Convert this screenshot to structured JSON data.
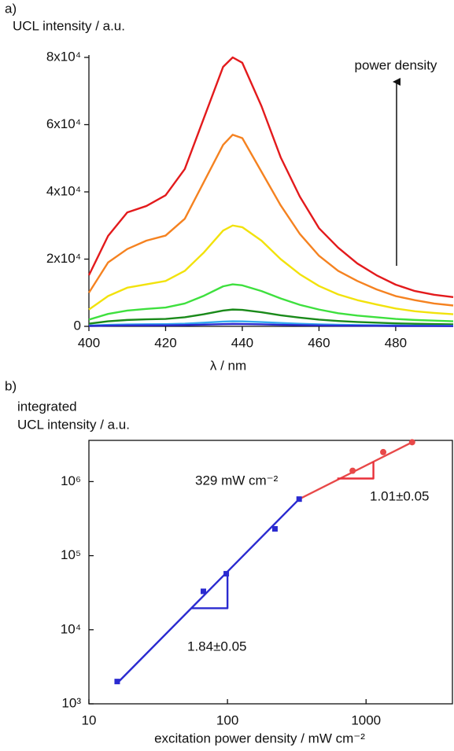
{
  "chart_data": [
    {
      "type": "line",
      "panel": "a)",
      "ylabel": "UCL intensity / a.u.",
      "xlabel": "λ / nm",
      "xlim": [
        400,
        495
      ],
      "xticks": [
        400,
        420,
        440,
        460,
        480
      ],
      "ylim": [
        0,
        80000
      ],
      "yticks": [
        0,
        {
          "value": 20000,
          "label": "2x10⁴"
        },
        {
          "value": 40000,
          "label": "4x10⁴"
        },
        {
          "value": 60000,
          "label": "6x10⁴"
        },
        {
          "value": 80000,
          "label": "8x10⁴"
        }
      ],
      "annotations": [
        {
          "text": "power density"
        }
      ],
      "x": [
        400,
        405,
        410,
        415,
        420,
        425,
        430,
        435,
        437.5,
        440,
        445,
        450,
        455,
        460,
        465,
        470,
        475,
        480,
        485,
        490,
        495
      ],
      "series": [
        {
          "color": "#e31a1c",
          "values": [
            15200,
            26900,
            33900,
            35800,
            39000,
            46800,
            62000,
            77200,
            80000,
            78400,
            65500,
            50300,
            38600,
            29200,
            23400,
            18700,
            15200,
            12400,
            10500,
            9400,
            8700
          ]
        },
        {
          "color": "#f58220",
          "values": [
            10000,
            19000,
            23000,
            25500,
            27000,
            32000,
            43000,
            54000,
            57000,
            56000,
            46000,
            36000,
            27500,
            21000,
            16500,
            13500,
            11000,
            9000,
            7800,
            6800,
            6200
          ]
        },
        {
          "color": "#f2e20c",
          "values": [
            5000,
            9000,
            11500,
            12500,
            13500,
            16500,
            22000,
            28500,
            30000,
            29500,
            25500,
            20000,
            15500,
            12000,
            9500,
            7800,
            6500,
            5300,
            4500,
            4000,
            3600
          ]
        },
        {
          "color": "#3ee03e",
          "values": [
            2000,
            3700,
            4700,
            5200,
            5600,
            6800,
            9100,
            11900,
            12500,
            12200,
            10500,
            8300,
            6400,
            5000,
            3900,
            3200,
            2700,
            2200,
            1900,
            1700,
            1500
          ]
        },
        {
          "color": "#1a8a1a",
          "values": [
            800,
            1500,
            1900,
            2100,
            2200,
            2700,
            3600,
            4700,
            5000,
            4900,
            4200,
            3300,
            2600,
            2000,
            1600,
            1300,
            1100,
            900,
            760,
            680,
            600
          ]
        },
        {
          "color": "#33aaee",
          "values": [
            250,
            450,
            570,
            630,
            670,
            810,
            1090,
            1420,
            1500,
            1470,
            1260,
            1000,
            770,
            600,
            470,
            380,
            320,
            270,
            230,
            200,
            180
          ]
        },
        {
          "color": "#2a2ad0",
          "values": [
            120,
            210,
            270,
            290,
            310,
            380,
            510,
            660,
            700,
            690,
            590,
            460,
            360,
            280,
            220,
            180,
            150,
            120,
            110,
            95,
            85
          ]
        }
      ]
    },
    {
      "type": "scatter",
      "panel": "b)",
      "ylabel": [
        "integrated",
        "UCL intensity / a.u."
      ],
      "xlabel": "excitation power density / mW cm⁻²",
      "log_x": true,
      "log_y": true,
      "xlim": [
        10,
        4200
      ],
      "xticks": [
        10,
        100,
        1000
      ],
      "ylim": [
        1000,
        3600000
      ],
      "yticks": [
        {
          "value": 1000,
          "label": "10³"
        },
        {
          "value": 10000,
          "label": "10⁴"
        },
        {
          "value": 100000,
          "label": "10⁵"
        },
        {
          "value": 1000000,
          "label": "10⁶"
        }
      ],
      "annotations": [
        {
          "text": "329 mW cm⁻²",
          "color": "#111111"
        },
        {
          "text": "1.01±0.05",
          "color": "#e8303a"
        },
        {
          "text": "1.84±0.05",
          "color": "#2a2ad0"
        }
      ],
      "series": [
        {
          "color": "#2a2ad0",
          "marker": "none",
          "x": [
            16,
            329
          ],
          "values": [
            1900,
            580000
          ]
        },
        {
          "color": "#2a2ad0",
          "marker": "none",
          "x": [
            55,
            100,
            100
          ],
          "values": [
            19500,
            19500,
            61000
          ]
        },
        {
          "color": "#e84848",
          "marker": "none",
          "x": [
            329,
            2150
          ],
          "values": [
            580000,
            3400000
          ]
        },
        {
          "color": "#e8303a",
          "marker": "none",
          "x": [
            620,
            1130,
            1130
          ],
          "values": [
            1100000,
            1100000,
            1860000
          ]
        },
        {
          "color": "#2a2ad0",
          "marker": "square",
          "x": [
            16,
            67,
            98,
            220,
            329
          ],
          "values": [
            2000,
            33000,
            57000,
            230000,
            580000
          ]
        },
        {
          "color": "#e84848",
          "marker": "circle",
          "x": [
            800,
            1330,
            2150
          ],
          "values": [
            1400000,
            2500000,
            3400000
          ]
        }
      ]
    }
  ]
}
